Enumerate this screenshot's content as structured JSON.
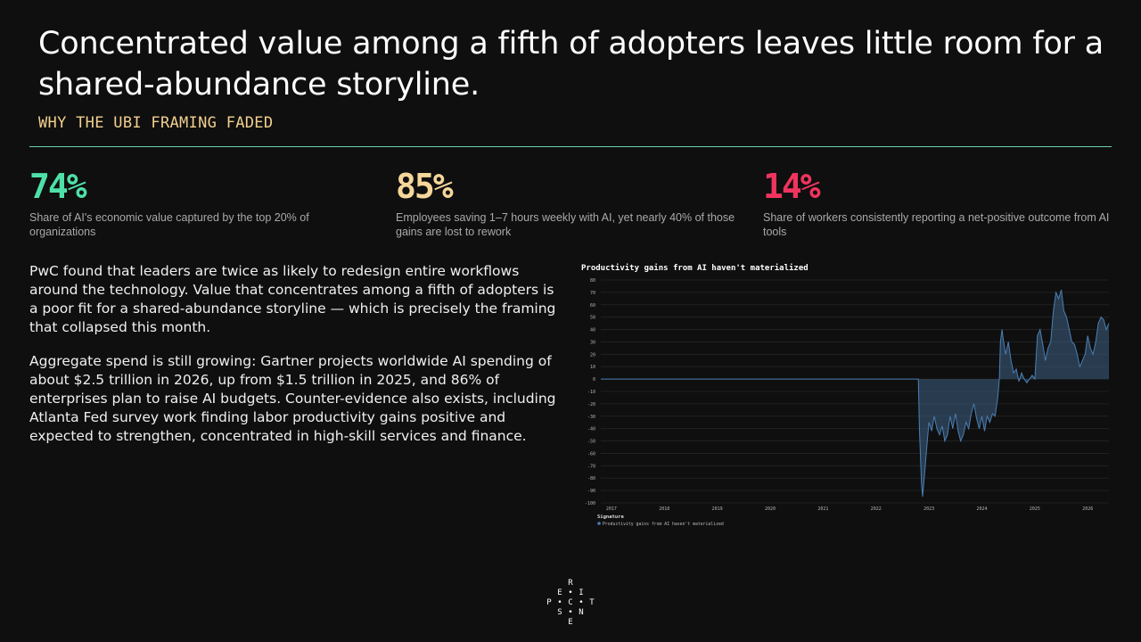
{
  "slide": {
    "title": "Concentrated value among a fifth of adopters leaves little room for a shared-abundance storyline.",
    "kicker": "WHY THE UBI FRAMING FADED"
  },
  "stats": [
    {
      "value": "74%",
      "desc": "Share of AI's economic value captured by the top 20% of organizations",
      "color": "#4ee0a8"
    },
    {
      "value": "85%",
      "desc": "Employees saving 1–7 hours weekly with AI, yet nearly 40% of those gains are lost to rework",
      "color": "#f5d79a"
    },
    {
      "value": "14%",
      "desc": "Share of workers consistently reporting a net-positive outcome from AI tools",
      "color": "#f0345e"
    }
  ],
  "body": {
    "p1": "PwC found that leaders are twice as likely to redesign entire workflows around the technology. Value that concentrates among a fifth of adopters is a poor fit for a shared-abundance storyline — which is precisely the framing that collapsed this month.",
    "p2": "Aggregate spend is still growing: Gartner projects worldwide AI spending of about $2.5 trillion in 2026, up from $1.5 trillion in 2025, and 86% of enterprises plan to raise AI budgets. Counter-evidence also exists, including Atlanta Fed survey work finding labor productivity gains positive and expected to strengthen, concentrated in high-skill services and finance."
  },
  "chart_data": {
    "type": "area",
    "title": "Productivity gains from AI haven't materialized",
    "xlabel": "",
    "ylabel": "",
    "ylim": [
      -100,
      80
    ],
    "xlim": [
      2016.8,
      2026.4
    ],
    "x_ticks": [
      "2017",
      "2018",
      "2019",
      "2020",
      "2021",
      "2022",
      "2023",
      "2024",
      "2025",
      "2026"
    ],
    "y_ticks": [
      80,
      70,
      60,
      50,
      40,
      30,
      20,
      10,
      0,
      -10,
      -20,
      -30,
      -40,
      -50,
      -60,
      -70,
      -80,
      -90,
      -100
    ],
    "grid": true,
    "legend": {
      "title": "Signature",
      "position": "bottom-left"
    },
    "series": [
      {
        "name": "Productivity gains from AI haven't materialized",
        "color": "#4a7fb5",
        "x": [
          2016.8,
          2022.8,
          2022.82,
          2022.86,
          2022.88,
          2022.92,
          2022.96,
          2023.0,
          2023.05,
          2023.1,
          2023.15,
          2023.2,
          2023.25,
          2023.3,
          2023.35,
          2023.4,
          2023.45,
          2023.5,
          2023.55,
          2023.6,
          2023.65,
          2023.7,
          2023.75,
          2023.8,
          2023.85,
          2023.9,
          2023.95,
          2024.0,
          2024.05,
          2024.1,
          2024.15,
          2024.2,
          2024.25,
          2024.3,
          2024.33,
          2024.35,
          2024.38,
          2024.4,
          2024.45,
          2024.5,
          2024.55,
          2024.6,
          2024.65,
          2024.7,
          2024.75,
          2024.8,
          2024.85,
          2024.9,
          2024.95,
          2025.0,
          2025.05,
          2025.1,
          2025.15,
          2025.2,
          2025.25,
          2025.3,
          2025.35,
          2025.4,
          2025.45,
          2025.5,
          2025.55,
          2025.6,
          2025.65,
          2025.7,
          2025.75,
          2025.8,
          2025.85,
          2025.9,
          2025.95,
          2026.0,
          2026.05,
          2026.1,
          2026.15,
          2026.2,
          2026.25,
          2026.3,
          2026.35,
          2026.4
        ],
        "y": [
          0,
          0,
          -40,
          -85,
          -95,
          -75,
          -55,
          -35,
          -42,
          -30,
          -40,
          -45,
          -38,
          -50,
          -45,
          -30,
          -40,
          -28,
          -42,
          -50,
          -45,
          -35,
          -40,
          -28,
          -20,
          -32,
          -40,
          -30,
          -42,
          -30,
          -35,
          -28,
          -30,
          -15,
          0,
          30,
          40,
          33,
          20,
          30,
          15,
          5,
          8,
          -2,
          5,
          0,
          -3,
          0,
          3,
          0,
          35,
          40,
          28,
          15,
          25,
          30,
          55,
          70,
          65,
          72,
          55,
          50,
          40,
          30,
          28,
          20,
          10,
          15,
          20,
          35,
          25,
          20,
          30,
          45,
          50,
          48,
          40,
          45
        ]
      }
    ]
  },
  "logo": {
    "letters": [
      "R",
      "E",
      "I",
      "P",
      "C",
      "T",
      "S",
      "N",
      "E"
    ],
    "dots": [
      "•",
      "•",
      "•",
      "•"
    ]
  }
}
